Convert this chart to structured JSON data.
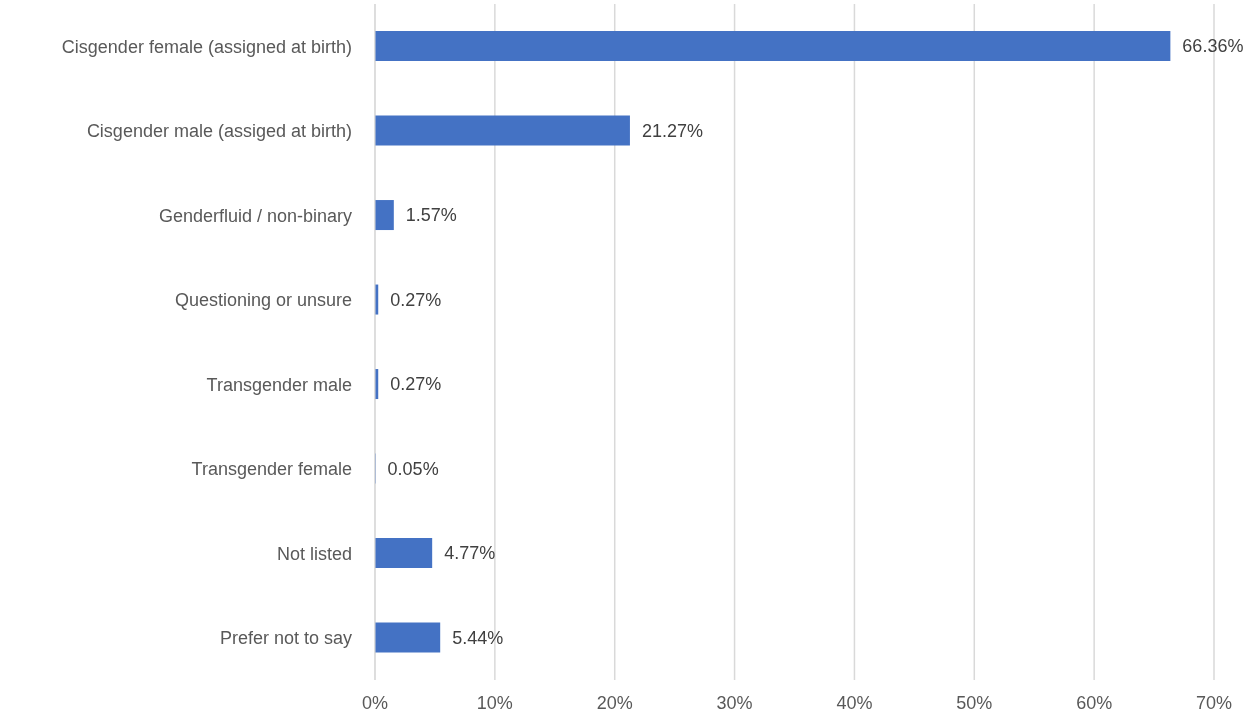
{
  "chart_data": {
    "type": "bar",
    "orientation": "horizontal",
    "categories": [
      "Cisgender female (assigned at birth)",
      "Cisgender male (assiged at birth)",
      "Genderfluid / non-binary",
      "Questioning or unsure",
      "Transgender male",
      "Transgender female",
      "Not listed",
      "Prefer not to say"
    ],
    "values": [
      66.36,
      21.27,
      1.57,
      0.27,
      0.27,
      0.05,
      4.77,
      5.44
    ],
    "value_labels": [
      "66.36%",
      "21.27%",
      "1.57%",
      "0.27%",
      "0.27%",
      "0.05%",
      "4.77%",
      "5.44%"
    ],
    "color": "#4472c4",
    "xlim": [
      0,
      70
    ],
    "xticks": [
      {
        "value": 0,
        "label": "0%"
      },
      {
        "value": 10,
        "label": "10%"
      },
      {
        "value": 20,
        "label": "20%"
      },
      {
        "value": 30,
        "label": "30%"
      },
      {
        "value": 40,
        "label": "40%"
      },
      {
        "value": 50,
        "label": "50%"
      },
      {
        "value": 60,
        "label": "60%"
      },
      {
        "value": 70,
        "label": "70%"
      }
    ],
    "grid": "x"
  }
}
